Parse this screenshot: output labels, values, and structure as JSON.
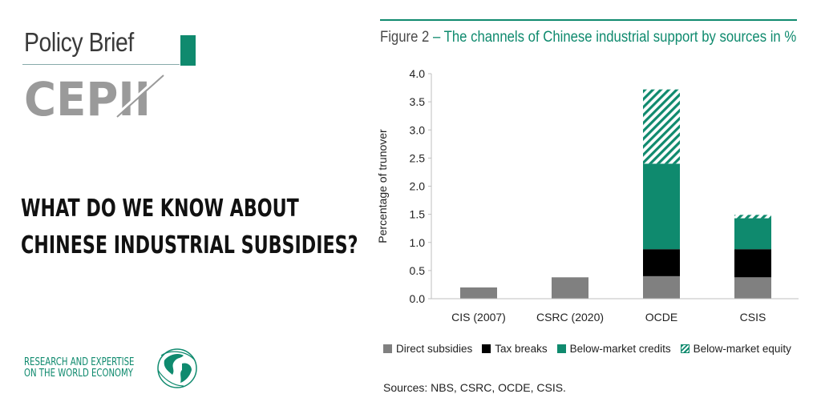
{
  "brand": {
    "title": "Policy Brief",
    "logo_text": "CEPII",
    "headline": [
      "WHAT DO WE KNOW ABOUT",
      "CHINESE INDUSTRIAL SUBSIDIES?"
    ],
    "tagline": [
      "RESEARCH AND EXPERTISE",
      "ON THE WORLD ECONOMY"
    ],
    "accent_color": "#0f8a6e",
    "logo_color": "#9a9a9a"
  },
  "figure": {
    "label": "Figure 2",
    "separator": " – ",
    "caption": "The channels of Chinese industrial support by sources in %",
    "sources": "Sources: NBS, CSRC, OCDE, CSIS."
  },
  "chart_data": {
    "type": "bar",
    "stacked": true,
    "title": "Figure 2 – The channels of Chinese industrial support by sources in %",
    "xlabel": "",
    "ylabel": "Percentage of trunover",
    "ylim": [
      0,
      4.0
    ],
    "yticks": [
      "0.0",
      "0.5",
      "1.0",
      "1.5",
      "2.0",
      "2.5",
      "3.0",
      "3.5",
      "4.0"
    ],
    "categories": [
      "CIS (2007)",
      "CSRC (2020)",
      "OCDE",
      "CSIS"
    ],
    "series": [
      {
        "name": "Direct subsidies",
        "color": "#808080",
        "pattern": "solid",
        "values": [
          0.2,
          0.38,
          0.4,
          0.38
        ]
      },
      {
        "name": "Tax breaks",
        "color": "#000000",
        "pattern": "solid",
        "values": [
          0,
          0,
          0.48,
          0.5
        ]
      },
      {
        "name": "Below-market credits",
        "color": "#0f8a6e",
        "pattern": "solid",
        "values": [
          0,
          0,
          1.52,
          0.55
        ]
      },
      {
        "name": "Below-market equity",
        "color": "#0f8a6e",
        "pattern": "hatched",
        "values": [
          0,
          0,
          1.32,
          0.06
        ]
      }
    ],
    "legend_position": "bottom",
    "grid": false
  }
}
